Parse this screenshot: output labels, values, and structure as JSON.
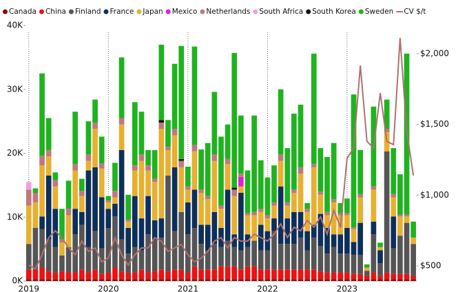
{
  "chart_data": {
    "type": "bar",
    "stacked": true,
    "categories": [
      "2019",
      null,
      null,
      null,
      null,
      null,
      null,
      null,
      null,
      null,
      null,
      null,
      "2020",
      null,
      null,
      null,
      null,
      null,
      null,
      null,
      null,
      null,
      null,
      null,
      "2021",
      null,
      null,
      null,
      null,
      null,
      null,
      null,
      null,
      null,
      null,
      null,
      "2022",
      null,
      null,
      null,
      null,
      null,
      null,
      null,
      null,
      null,
      null,
      null,
      "2023",
      null,
      null,
      null,
      null,
      null,
      null,
      null,
      null,
      null,
      null
    ],
    "series": [
      {
        "name": "Canada",
        "color": "#8b0a0a",
        "values": [
          300,
          300,
          300,
          300,
          300,
          300,
          300,
          300,
          300,
          300,
          300,
          300,
          300,
          300,
          300,
          300,
          300,
          300,
          300,
          300,
          300,
          300,
          300,
          300,
          300,
          300,
          300,
          300,
          300,
          300,
          300,
          300,
          300,
          300,
          300,
          300,
          300,
          300,
          300,
          300,
          300,
          300,
          300,
          300,
          300,
          300,
          300,
          300,
          300,
          300,
          300,
          300,
          300,
          300,
          300,
          300,
          300,
          300,
          300
        ]
      },
      {
        "name": "China",
        "color": "#ee1111",
        "values": [
          1500,
          1500,
          1800,
          1200,
          1000,
          1200,
          1000,
          1000,
          1500,
          1000,
          1500,
          800,
          1000,
          1800,
          1200,
          1000,
          1000,
          1500,
          1000,
          1200,
          1500,
          1200,
          1500,
          1500,
          1000,
          2000,
          1500,
          1500,
          1500,
          2000,
          2000,
          2000,
          1500,
          2000,
          2000,
          1500,
          1500,
          1500,
          1500,
          1500,
          1500,
          1500,
          1500,
          1500,
          1200,
          1000,
          1000,
          1000,
          1000,
          800,
          800,
          500,
          1000,
          500,
          1000,
          800,
          800,
          800,
          500
        ]
      },
      {
        "name": "Finland",
        "color": "#555555",
        "values": [
          4000,
          6500,
          6000,
          5000,
          4000,
          2500,
          4000,
          6000,
          7000,
          4000,
          6000,
          4000,
          7000,
          8000,
          5000,
          3000,
          4000,
          3000,
          6000,
          5000,
          5000,
          15000,
          6000,
          9000,
          6000,
          6000,
          4000,
          3000,
          4000,
          3000,
          4000,
          3000,
          3000,
          3000,
          4000,
          3000,
          3000,
          6000,
          4000,
          4000,
          4000,
          5000,
          3000,
          5000,
          4000,
          3000,
          4000,
          3000,
          3000,
          3000,
          3000,
          800,
          6000,
          2000,
          19000,
          4000,
          6000,
          8000,
          5000
        ]
      },
      {
        "name": "France",
        "color": "#0d2f5a",
        "values": [
          0,
          0,
          2000,
          10000,
          6000,
          0,
          0,
          4000,
          2000,
          12000,
          10000,
          8000,
          3000,
          2000,
          14000,
          4000,
          8000,
          5000,
          6000,
          3000,
          3000,
          0,
          10000,
          0,
          5000,
          6000,
          3000,
          4000,
          5000,
          3000,
          8000,
          2000,
          9000,
          2000,
          0,
          4000,
          3000,
          2000,
          9000,
          4000,
          5000,
          4000,
          3000,
          2000,
          5000,
          4000,
          2000,
          3000,
          4000,
          2000,
          5000,
          0,
          2000,
          2000,
          0,
          5000,
          0,
          0,
          0
        ]
      },
      {
        "name": "Japan",
        "color": "#e8b030",
        "values": [
          6000,
          4000,
          8000,
          3000,
          3500,
          2000,
          5000,
          6000,
          2500,
          1500,
          6000,
          4500,
          1000,
          1000,
          4000,
          1000,
          4000,
          9000,
          4000,
          6000,
          14000,
          4000,
          5000,
          7000,
          2000,
          6000,
          5000,
          4000,
          8000,
          3000,
          4000,
          6000,
          1000,
          3000,
          4000,
          2000,
          2000,
          2000,
          4000,
          2000,
          3000,
          6000,
          3000,
          9000,
          3000,
          2000,
          5000,
          3000,
          2000,
          2000,
          4000,
          500,
          5000,
          500,
          3000,
          3000,
          3000,
          1000,
          1000
        ]
      },
      {
        "name": "Mexico",
        "color": "#e020d0",
        "values": [
          0,
          0,
          0,
          0,
          0,
          0,
          0,
          0,
          0,
          0,
          0,
          0,
          0,
          0,
          0,
          0,
          0,
          0,
          0,
          0,
          0,
          0,
          0,
          0,
          0,
          0,
          0,
          0,
          0,
          0,
          0,
          0,
          1500,
          0,
          0,
          0,
          0,
          0,
          0,
          0,
          0,
          0,
          0,
          0,
          0,
          0,
          0,
          0,
          0,
          0,
          0,
          0,
          0,
          0,
          0,
          0,
          0,
          0,
          0
        ]
      },
      {
        "name": "Netherlands",
        "color": "#c07880",
        "values": [
          2500,
          1500,
          1500,
          1000,
          1000,
          500,
          1000,
          1000,
          800,
          1000,
          1000,
          800,
          300,
          1000,
          1000,
          300,
          800,
          1000,
          800,
          500,
          1000,
          500,
          1000,
          1000,
          500,
          1000,
          500,
          500,
          1000,
          500,
          800,
          1000,
          500,
          300,
          500,
          500,
          500,
          500,
          1000,
          500,
          500,
          1000,
          500,
          500,
          500,
          500,
          500,
          300,
          300,
          300,
          500,
          0,
          500,
          0,
          500,
          500,
          300,
          300,
          0
        ]
      },
      {
        "name": "South Africa",
        "color": "#f0a0e0",
        "values": [
          1200,
          0,
          0,
          0,
          0,
          0,
          0,
          0,
          0,
          0,
          0,
          0,
          0,
          0,
          0,
          0,
          0,
          0,
          0,
          0,
          0,
          0,
          0,
          0,
          0,
          0,
          0,
          0,
          0,
          0,
          0,
          0,
          0,
          0,
          0,
          0,
          0,
          0,
          0,
          0,
          0,
          0,
          0,
          0,
          0,
          0,
          0,
          0,
          0,
          0,
          0,
          0,
          0,
          0,
          0,
          0,
          0,
          0,
          0
        ]
      },
      {
        "name": "South Korea",
        "color": "#111111",
        "values": [
          0,
          0,
          0,
          0,
          0,
          0,
          0,
          0,
          0,
          0,
          0,
          0,
          0,
          0,
          0,
          0,
          0,
          0,
          0,
          0,
          400,
          0,
          0,
          300,
          0,
          0,
          0,
          0,
          0,
          0,
          0,
          300,
          0,
          0,
          0,
          0,
          0,
          0,
          0,
          0,
          0,
          0,
          0,
          0,
          0,
          0,
          0,
          0,
          0,
          0,
          0,
          0,
          0,
          0,
          0,
          0,
          0,
          0,
          0
        ]
      },
      {
        "name": "Sweden",
        "color": "#1fb31f",
        "values": [
          0,
          700,
          12900,
          5000,
          1200,
          4800,
          4400,
          8200,
          1900,
          5200,
          3600,
          4200,
          700,
          4400,
          9500,
          3900,
          9900,
          6700,
          2400,
          4500,
          11800,
          4200,
          10200,
          17700,
          3100,
          15400,
          6300,
          8300,
          9800,
          10800,
          5400,
          21100,
          9100,
          6700,
          15100,
          7600,
          5900,
          5800,
          10200,
          8500,
          11900,
          9800,
          900,
          17300,
          6800,
          8600,
          8800,
          1600,
          2300,
          20800,
          6900,
          500,
          12500,
          700,
          4600,
          7200,
          6300,
          25200,
          2500
        ]
      },
      {
        "name": "CV $/t",
        "color": "#b07070",
        "type": "line",
        "axis": "y2",
        "values": [
          505,
          480,
          578,
          700,
          748,
          700,
          627,
          578,
          675,
          602,
          627,
          529,
          554,
          700,
          578,
          505,
          578,
          627,
          627,
          700,
          675,
          602,
          627,
          651,
          578,
          529,
          554,
          602,
          675,
          700,
          627,
          700,
          675,
          675,
          724,
          700,
          675,
          724,
          797,
          700,
          773,
          748,
          821,
          773,
          846,
          724,
          894,
          773,
          1260,
          1333,
          1917,
          1381,
          1333,
          1722,
          1381,
          1357,
          2112,
          1455,
          1138
        ]
      }
    ],
    "ylim": [
      0,
      40000
    ],
    "yticks": [
      {
        "value": 0,
        "label": "0K"
      },
      {
        "value": 10000,
        "label": "10K"
      },
      {
        "value": 20000,
        "label": "20K"
      },
      {
        "value": 30000,
        "label": "30K"
      },
      {
        "value": 40000,
        "label": "40K"
      }
    ],
    "y2lim": [
      393,
      2200
    ],
    "y2ticks": [
      {
        "value": 500,
        "label": "$500"
      },
      {
        "value": 1000,
        "label": "$1,000"
      },
      {
        "value": 1500,
        "label": "$1,500"
      },
      {
        "value": 2000,
        "label": "$2,000"
      }
    ],
    "legend": "top"
  }
}
